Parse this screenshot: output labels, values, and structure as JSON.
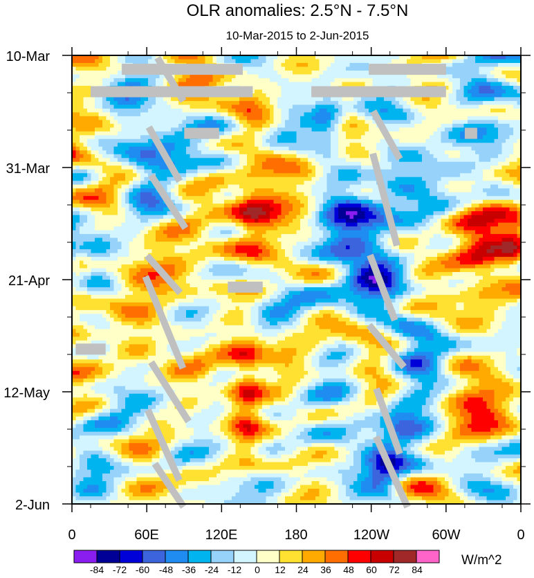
{
  "chart_data": {
    "type": "heatmap",
    "title": "OLR anomalies: 2.5°N - 7.5°N",
    "subtitle": "10-Mar-2015 to 2-Jun-2015",
    "x_tick_labels": [
      "0",
      "60E",
      "120E",
      "180",
      "120W",
      "60W",
      "0"
    ],
    "x_range_degrees_east": [
      0,
      360
    ],
    "y_tick_labels": [
      "10-Mar",
      "31-Mar",
      "21-Apr",
      "12-May",
      "2-Jun"
    ],
    "y_range_days_since_start": [
      0,
      84
    ],
    "units_label": "W/m^2",
    "colorbar": {
      "boundaries": [
        "-84",
        "-72",
        "-60",
        "-48",
        "-36",
        "-24",
        "-12",
        "0",
        "12",
        "24",
        "36",
        "48",
        "60",
        "72",
        "84"
      ],
      "colors": [
        "#8a1ef0",
        "#000096",
        "#0000d8",
        "#3c64dc",
        "#1e8cf0",
        "#00b4f0",
        "#96d2fa",
        "#d2f5ff",
        "#ffffc8",
        "#ffe132",
        "#ffaa00",
        "#ff6e00",
        "#ff0000",
        "#c80000",
        "#a02828",
        "#ff64c8"
      ]
    },
    "missing_color": "#c0c0c0"
  }
}
